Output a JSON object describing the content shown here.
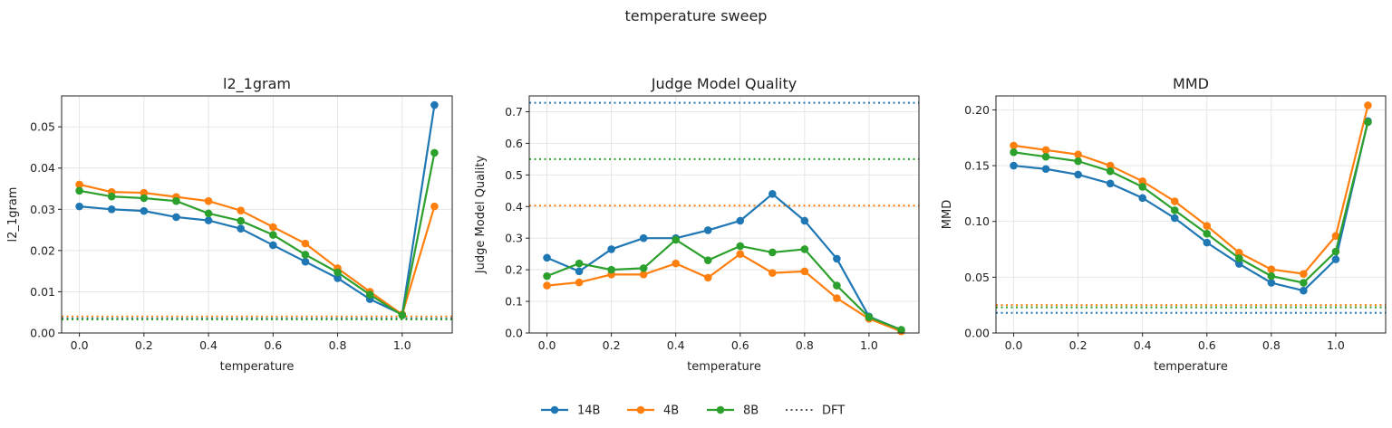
{
  "figure": {
    "suptitle": "temperature sweep",
    "legend": {
      "position": "bottom-center",
      "entries": [
        {
          "label": "14B",
          "color": "#1f77b4",
          "style": "line-marker"
        },
        {
          "label": "4B",
          "color": "#ff7f0e",
          "style": "line-marker"
        },
        {
          "label": "8B",
          "color": "#2ca02c",
          "style": "line-marker"
        },
        {
          "label": "DFT",
          "color": "#555555",
          "style": "dotted"
        }
      ]
    }
  },
  "chart_data": [
    {
      "type": "line",
      "title": "l2_1gram",
      "xlabel": "temperature",
      "ylabel": "l2_1gram",
      "xlim": [
        -0.055,
        1.155
      ],
      "ylim": [
        0,
        0.0575
      ],
      "xticks": [
        0.0,
        0.2,
        0.4,
        0.6,
        0.8,
        1.0
      ],
      "xtick_labels": [
        "0.0",
        "0.2",
        "0.4",
        "0.6",
        "0.8",
        "1.0"
      ],
      "yticks": [
        0,
        0.01,
        0.02,
        0.03,
        0.04,
        0.05
      ],
      "ytick_labels": [
        "0.00",
        "0.01",
        "0.02",
        "0.03",
        "0.04",
        "0.05"
      ],
      "grid": true,
      "x": [
        0.0,
        0.1,
        0.2,
        0.3,
        0.4,
        0.5,
        0.6,
        0.7,
        0.8,
        0.9,
        1.0,
        1.1
      ],
      "series": [
        {
          "name": "14B",
          "color": "#1f77b4",
          "values": [
            0.0307,
            0.03,
            0.0296,
            0.0281,
            0.0273,
            0.0253,
            0.0213,
            0.0173,
            0.0133,
            0.0082,
            0.0045,
            0.0553
          ]
        },
        {
          "name": "4B",
          "color": "#ff7f0e",
          "values": [
            0.036,
            0.0342,
            0.034,
            0.033,
            0.032,
            0.0297,
            0.0257,
            0.0217,
            0.0157,
            0.01,
            0.0045,
            0.0307
          ]
        },
        {
          "name": "8B",
          "color": "#2ca02c",
          "values": [
            0.0345,
            0.0331,
            0.0327,
            0.032,
            0.029,
            0.0272,
            0.0238,
            0.019,
            0.0147,
            0.0093,
            0.0043,
            0.0437
          ]
        }
      ],
      "reference_lines": [
        {
          "name": "DFT",
          "series": "14B",
          "color": "#1f77b4",
          "y": 0.0035
        },
        {
          "name": "DFT",
          "series": "4B",
          "color": "#ff7f0e",
          "y": 0.004
        },
        {
          "name": "DFT",
          "series": "8B",
          "color": "#2ca02c",
          "y": 0.0033
        }
      ]
    },
    {
      "type": "line",
      "title": "Judge Model Quality",
      "xlabel": "temperature",
      "ylabel": "Judge Model Quality",
      "xlim": [
        -0.055,
        1.155
      ],
      "ylim": [
        0,
        0.75
      ],
      "xticks": [
        0.0,
        0.2,
        0.4,
        0.6,
        0.8,
        1.0
      ],
      "xtick_labels": [
        "0.0",
        "0.2",
        "0.4",
        "0.6",
        "0.8",
        "1.0"
      ],
      "yticks": [
        0,
        0.1,
        0.2,
        0.3,
        0.4,
        0.5,
        0.6,
        0.7
      ],
      "ytick_labels": [
        "0.0",
        "0.1",
        "0.2",
        "0.3",
        "0.4",
        "0.5",
        "0.6",
        "0.7"
      ],
      "grid": true,
      "x": [
        0.0,
        0.1,
        0.2,
        0.3,
        0.4,
        0.5,
        0.6,
        0.7,
        0.8,
        0.9,
        1.0,
        1.1
      ],
      "series": [
        {
          "name": "14B",
          "color": "#1f77b4",
          "values": [
            0.238,
            0.195,
            0.265,
            0.3,
            0.3,
            0.325,
            0.355,
            0.44,
            0.355,
            0.235,
            0.052,
            0.01
          ]
        },
        {
          "name": "4B",
          "color": "#ff7f0e",
          "values": [
            0.15,
            0.16,
            0.185,
            0.185,
            0.22,
            0.175,
            0.25,
            0.19,
            0.195,
            0.11,
            0.045,
            0.005
          ]
        },
        {
          "name": "8B",
          "color": "#2ca02c",
          "values": [
            0.18,
            0.22,
            0.2,
            0.205,
            0.295,
            0.23,
            0.275,
            0.255,
            0.265,
            0.15,
            0.05,
            0.01
          ]
        }
      ],
      "reference_lines": [
        {
          "name": "DFT",
          "series": "14B",
          "color": "#1f77b4",
          "y": 0.728
        },
        {
          "name": "DFT",
          "series": "4B",
          "color": "#ff7f0e",
          "y": 0.403
        },
        {
          "name": "DFT",
          "series": "8B",
          "color": "#2ca02c",
          "y": 0.55
        }
      ]
    },
    {
      "type": "line",
      "title": "MMD",
      "xlabel": "temperature",
      "ylabel": "MMD",
      "xlim": [
        -0.055,
        1.155
      ],
      "ylim": [
        0,
        0.2125
      ],
      "xticks": [
        0.0,
        0.2,
        0.4,
        0.6,
        0.8,
        1.0
      ],
      "xtick_labels": [
        "0.0",
        "0.2",
        "0.4",
        "0.6",
        "0.8",
        "1.0"
      ],
      "yticks": [
        0,
        0.05,
        0.1,
        0.15,
        0.2
      ],
      "ytick_labels": [
        "0.00",
        "0.05",
        "0.10",
        "0.15",
        "0.20"
      ],
      "grid": true,
      "x": [
        0.0,
        0.1,
        0.2,
        0.3,
        0.4,
        0.5,
        0.6,
        0.7,
        0.8,
        0.9,
        1.0,
        1.1
      ],
      "series": [
        {
          "name": "14B",
          "color": "#1f77b4",
          "values": [
            0.15,
            0.147,
            0.142,
            0.134,
            0.121,
            0.103,
            0.081,
            0.062,
            0.045,
            0.038,
            0.066,
            0.19
          ]
        },
        {
          "name": "4B",
          "color": "#ff7f0e",
          "values": [
            0.168,
            0.164,
            0.16,
            0.15,
            0.136,
            0.118,
            0.096,
            0.072,
            0.057,
            0.053,
            0.087,
            0.204
          ]
        },
        {
          "name": "8B",
          "color": "#2ca02c",
          "values": [
            0.162,
            0.158,
            0.154,
            0.145,
            0.131,
            0.11,
            0.089,
            0.067,
            0.051,
            0.045,
            0.073,
            0.189
          ]
        }
      ],
      "reference_lines": [
        {
          "name": "DFT",
          "series": "14B",
          "color": "#1f77b4",
          "y": 0.018
        },
        {
          "name": "DFT",
          "series": "4B",
          "color": "#ff7f0e",
          "y": 0.025
        },
        {
          "name": "DFT",
          "series": "8B",
          "color": "#2ca02c",
          "y": 0.023
        }
      ]
    }
  ]
}
